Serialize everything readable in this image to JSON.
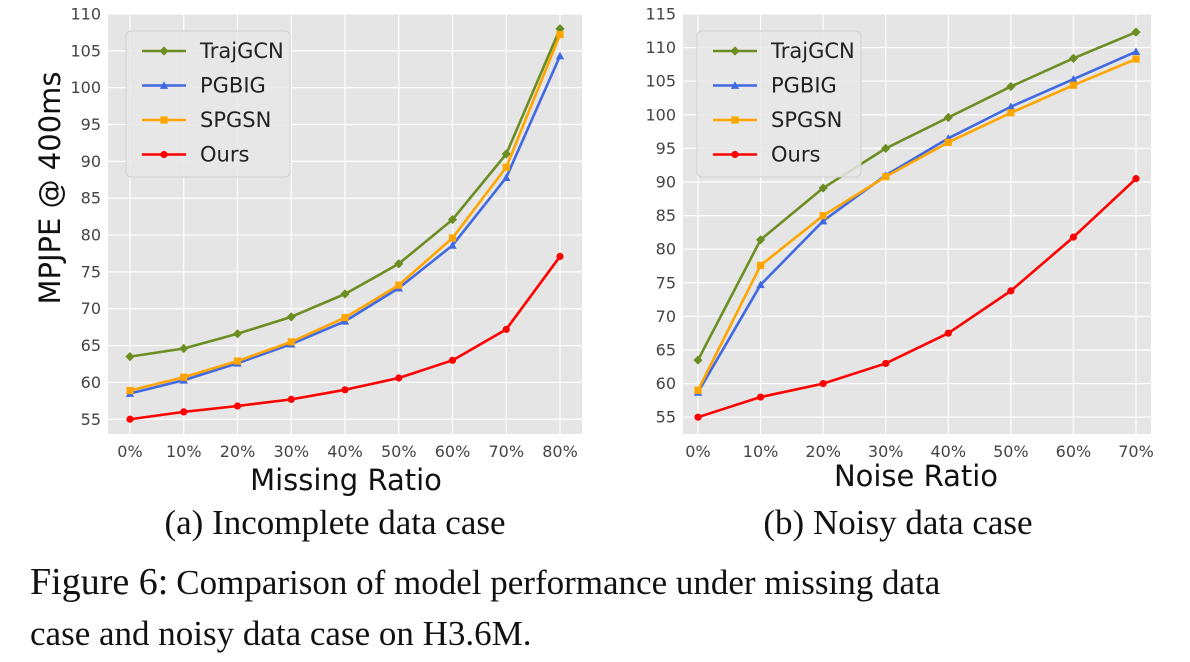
{
  "chart_data": [
    {
      "type": "line",
      "ylabel": "MPJPE @ 400ms",
      "xlabel": "Missing Ratio",
      "categories": [
        "0%",
        "10%",
        "20%",
        "30%",
        "40%",
        "50%",
        "60%",
        "70%",
        "80%"
      ],
      "ylim": [
        53,
        110
      ],
      "yticks": [
        55,
        60,
        65,
        70,
        75,
        80,
        85,
        90,
        95,
        100,
        105,
        110
      ],
      "grid": true,
      "legend_position": "top-left",
      "caption": "(a) Incomplete data case",
      "series": [
        {
          "name": "TrajGCN",
          "color": "#6b8e23",
          "marker": "diamond",
          "values": [
            63.5,
            64.6,
            66.6,
            68.9,
            72.0,
            76.1,
            82.1,
            91.0,
            108.0
          ]
        },
        {
          "name": "PGBIG",
          "color": "#4169e1",
          "marker": "triangle",
          "values": [
            58.5,
            60.3,
            62.6,
            65.2,
            68.3,
            72.8,
            78.6,
            87.8,
            104.3
          ]
        },
        {
          "name": "SPGSN",
          "color": "#ffa500",
          "marker": "square",
          "values": [
            58.9,
            60.7,
            62.9,
            65.5,
            68.8,
            73.2,
            79.6,
            89.2,
            107.2
          ]
        },
        {
          "name": "Ours",
          "color": "#ff0000",
          "marker": "circle",
          "values": [
            55.0,
            56.0,
            56.8,
            57.7,
            59.0,
            60.6,
            63.0,
            67.2,
            77.1
          ]
        }
      ]
    },
    {
      "type": "line",
      "ylabel": "",
      "xlabel": "Noise Ratio",
      "categories": [
        "0%",
        "10%",
        "20%",
        "30%",
        "40%",
        "50%",
        "60%",
        "70%"
      ],
      "ylim": [
        52.5,
        115
      ],
      "yticks": [
        55,
        60,
        65,
        70,
        75,
        80,
        85,
        90,
        95,
        100,
        105,
        110,
        115
      ],
      "grid": true,
      "legend_position": "top-left",
      "caption": "(b) Noisy data case",
      "series": [
        {
          "name": "TrajGCN",
          "color": "#6b8e23",
          "marker": "diamond",
          "values": [
            63.5,
            81.4,
            89.1,
            95.0,
            99.6,
            104.2,
            108.4,
            112.3
          ]
        },
        {
          "name": "PGBIG",
          "color": "#4169e1",
          "marker": "triangle",
          "values": [
            58.7,
            74.7,
            84.2,
            91.0,
            96.5,
            101.2,
            105.3,
            109.4
          ]
        },
        {
          "name": "SPGSN",
          "color": "#ffa500",
          "marker": "square",
          "values": [
            59.0,
            77.6,
            85.0,
            90.8,
            95.9,
            100.3,
            104.4,
            108.3
          ]
        },
        {
          "name": "Ours",
          "color": "#ff0000",
          "marker": "circle",
          "values": [
            55.0,
            58.0,
            60.0,
            63.0,
            67.5,
            73.8,
            81.8,
            90.5
          ]
        }
      ]
    }
  ],
  "figure_caption": {
    "label": "Figure 6:",
    "line1": "Comparison of model performance under missing data",
    "line2": "case and noisy data case on H3.6M."
  }
}
